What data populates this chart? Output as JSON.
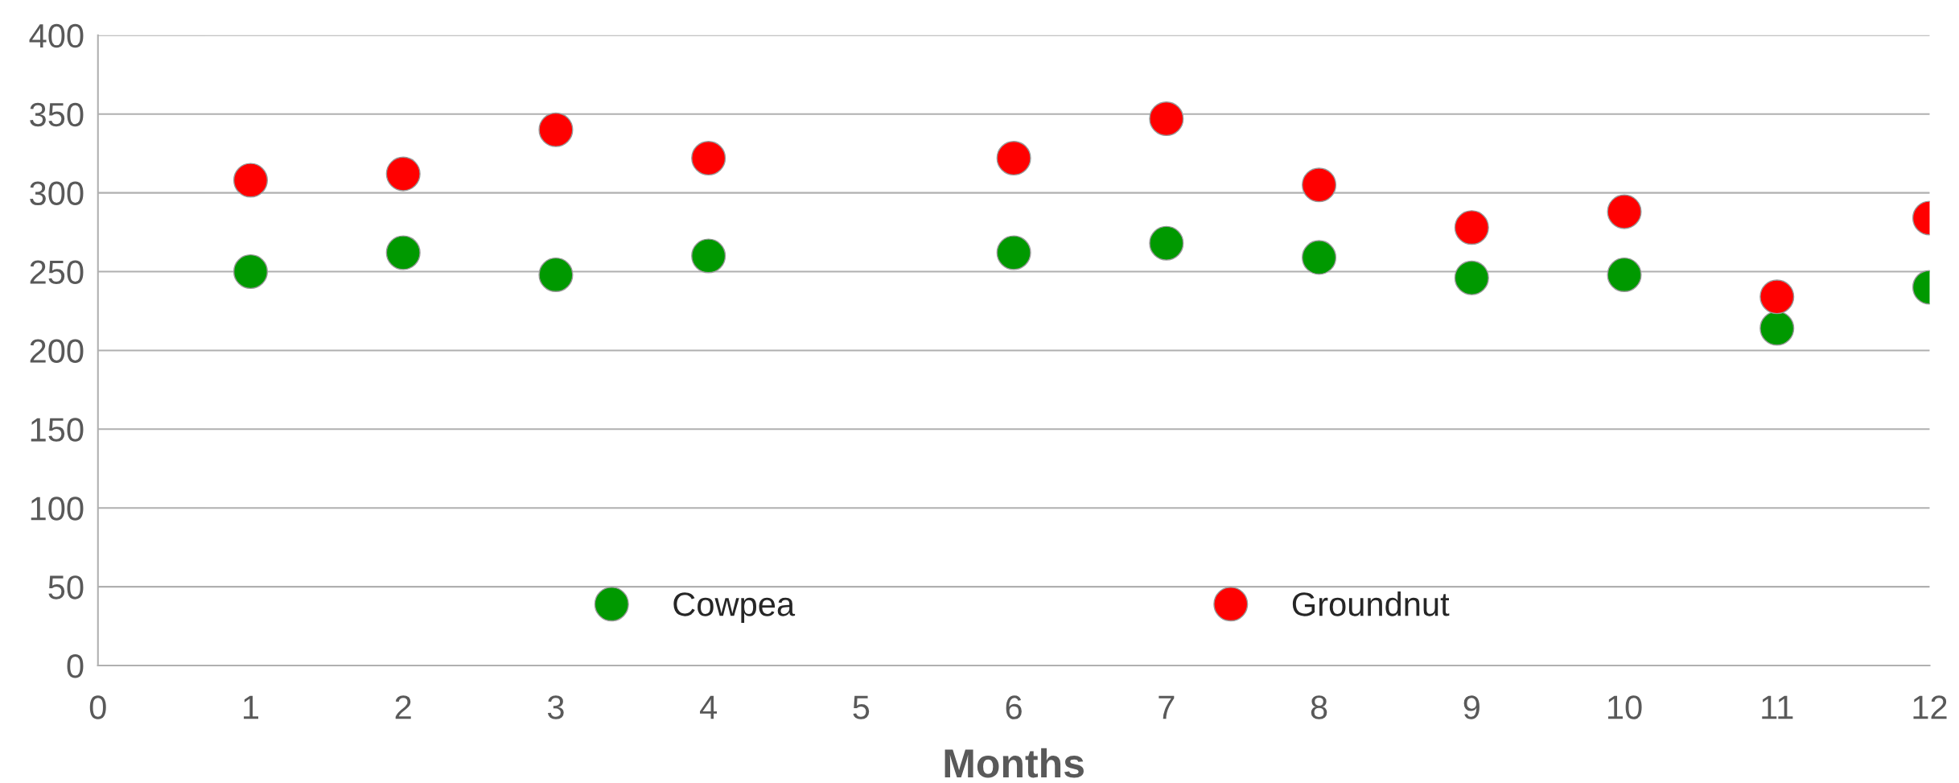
{
  "chart_data": {
    "type": "scatter",
    "xlabel": "Months",
    "x": [
      1,
      2,
      3,
      4,
      6,
      7,
      8,
      9,
      10,
      11,
      12
    ],
    "series": [
      {
        "name": "Cowpea",
        "color": "#009900",
        "values": [
          250,
          262,
          248,
          260,
          262,
          268,
          259,
          246,
          248,
          214,
          240
        ]
      },
      {
        "name": "Groundnut",
        "color": "#ff0000",
        "values": [
          308,
          312,
          340,
          322,
          322,
          347,
          305,
          278,
          288,
          234,
          284
        ]
      }
    ],
    "xlim": [
      0,
      12
    ],
    "xticks": [
      0,
      1,
      2,
      3,
      4,
      5,
      6,
      7,
      8,
      9,
      10,
      11,
      12
    ],
    "ylim": [
      0,
      400
    ],
    "yticks": [
      0,
      50,
      100,
      150,
      200,
      250,
      300,
      350,
      400
    ],
    "grid": "y",
    "legend": "bottom",
    "marker": "circle"
  }
}
